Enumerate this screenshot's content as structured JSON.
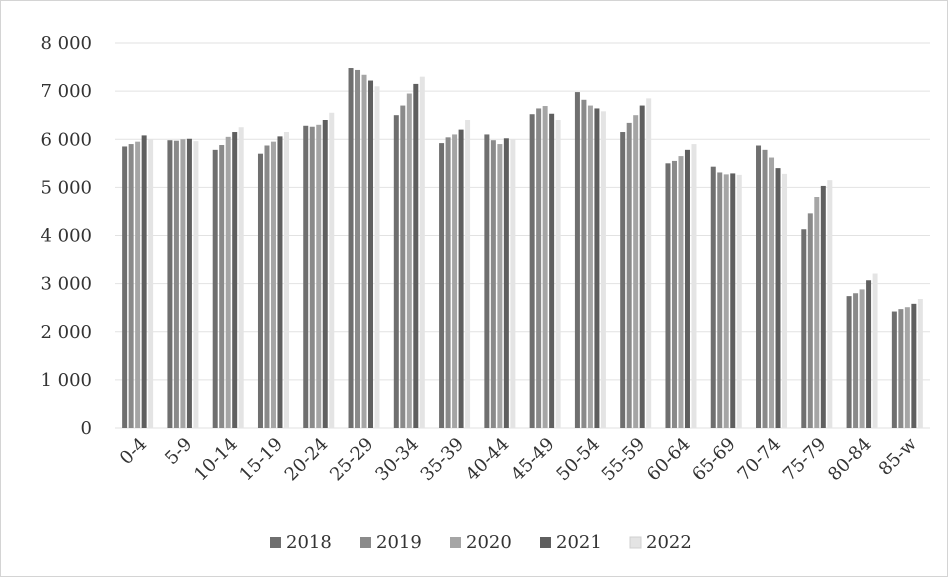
{
  "chart_data": {
    "type": "bar",
    "title": "",
    "xlabel": "",
    "ylabel": "",
    "ylim": [
      0,
      8000
    ],
    "yticks": [
      {
        "value": 0,
        "label": "0"
      },
      {
        "value": 1000,
        "label": "1 000"
      },
      {
        "value": 2000,
        "label": "2 000"
      },
      {
        "value": 3000,
        "label": "3 000"
      },
      {
        "value": 4000,
        "label": "4 000"
      },
      {
        "value": 5000,
        "label": "5 000"
      },
      {
        "value": 6000,
        "label": "6 000"
      },
      {
        "value": 7000,
        "label": "7 000"
      },
      {
        "value": 8000,
        "label": "8 000"
      }
    ],
    "grid": true,
    "legend_position": "bottom",
    "categories": [
      "0-4",
      "5-9",
      "10-14",
      "15-19",
      "20-24",
      "25-29",
      "30-34",
      "35-39",
      "40-44",
      "45-49",
      "50-54",
      "55-59",
      "60-64",
      "65-69",
      "70-74",
      "75-79",
      "80-84",
      "85-w"
    ],
    "series": [
      {
        "name": "2018",
        "color": "#6f6f6f",
        "values": [
          5850,
          5980,
          5780,
          5700,
          6280,
          7480,
          6500,
          5920,
          6100,
          6520,
          6980,
          6150,
          5500,
          5430,
          5870,
          4130,
          2740,
          2420
        ]
      },
      {
        "name": "2019",
        "color": "#8a8a8a",
        "values": [
          5900,
          5970,
          5880,
          5870,
          6260,
          7440,
          6700,
          6040,
          5980,
          6640,
          6820,
          6340,
          5550,
          5310,
          5780,
          4460,
          2800,
          2470
        ]
      },
      {
        "name": "2020",
        "color": "#a5a5a5",
        "values": [
          5950,
          6000,
          6050,
          5950,
          6300,
          7340,
          6950,
          6100,
          5900,
          6690,
          6700,
          6500,
          5650,
          5270,
          5620,
          4800,
          2880,
          2510
        ]
      },
      {
        "name": "2021",
        "color": "#5f5f5f",
        "values": [
          6080,
          6010,
          6150,
          6060,
          6400,
          7220,
          7150,
          6200,
          6020,
          6530,
          6640,
          6700,
          5780,
          5290,
          5400,
          5030,
          3070,
          2580
        ]
      },
      {
        "name": "2022",
        "color": "#e4e4e4",
        "values": [
          6000,
          5960,
          6250,
          6150,
          6550,
          7100,
          7300,
          6400,
          6000,
          6400,
          6580,
          6850,
          5900,
          5260,
          5280,
          5150,
          3210,
          2680
        ]
      }
    ]
  }
}
